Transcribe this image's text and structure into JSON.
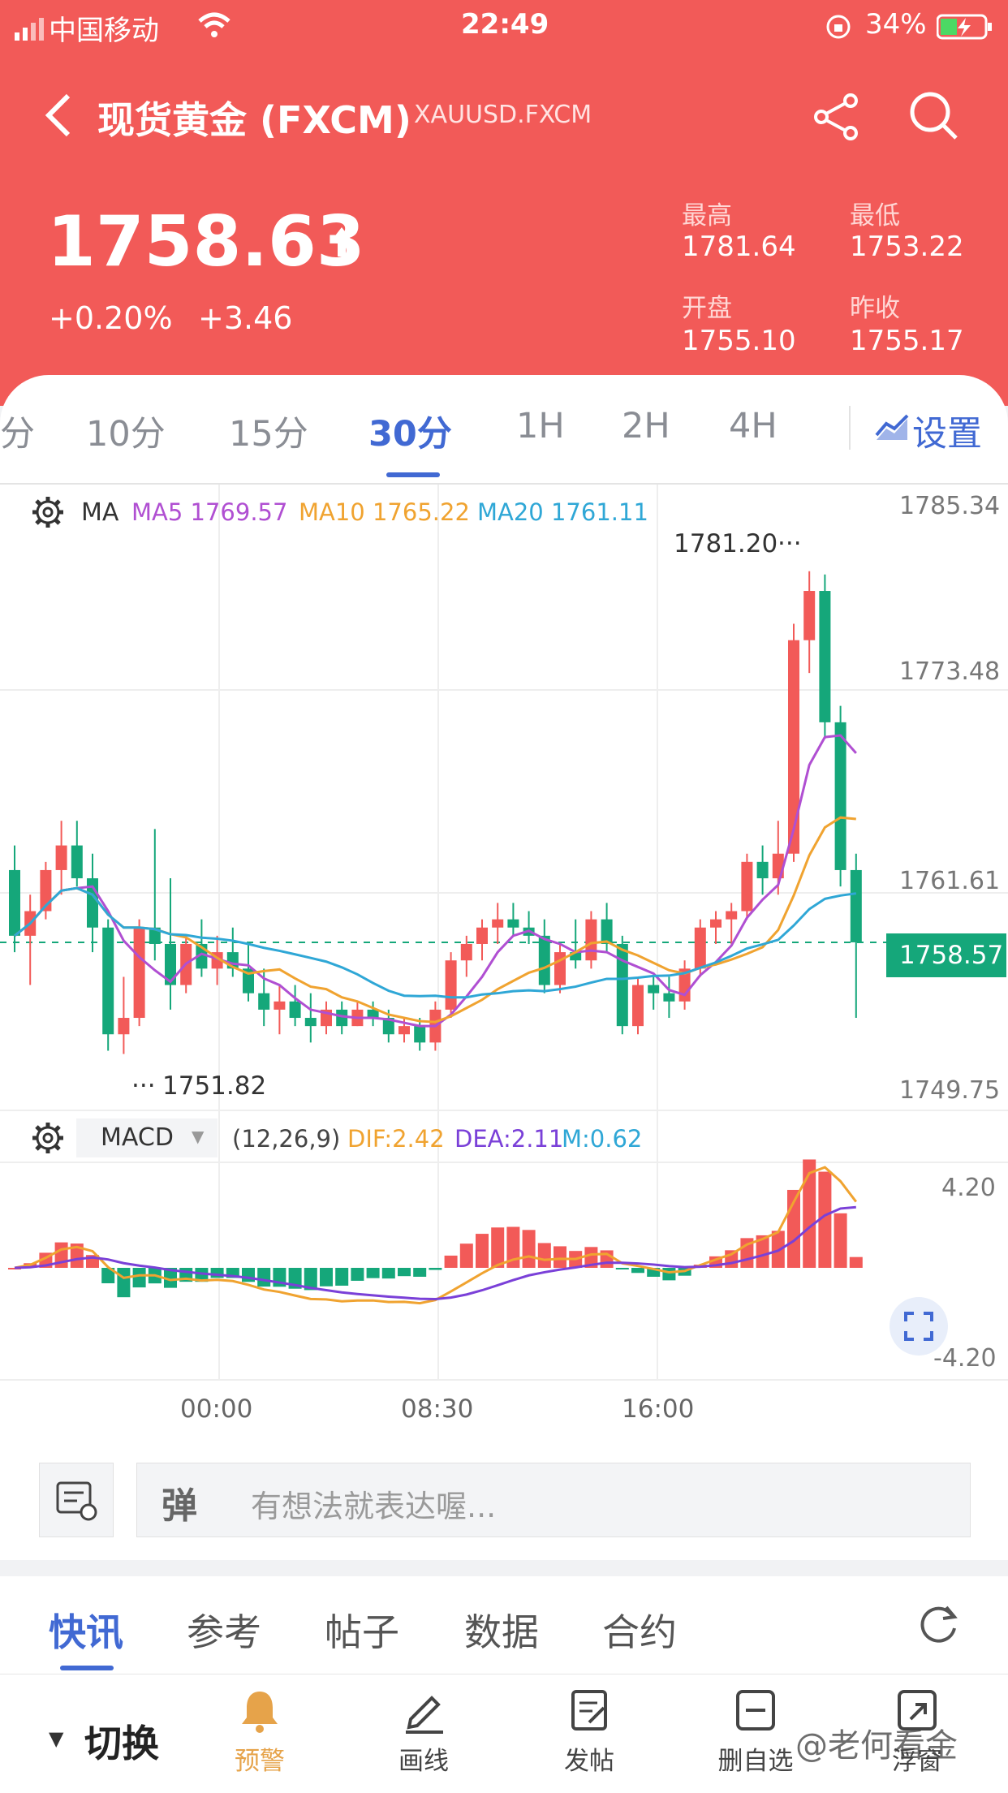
{
  "status_bar": {
    "carrier": "中国移动",
    "time": "22:49",
    "battery": "34%"
  },
  "nav": {
    "title": "现货黄金 (FXCM)",
    "symbol": "XAUUSD.FXCM"
  },
  "quote": {
    "price": "1758.63",
    "change_pct": "+0.20%",
    "change_abs": "+3.46",
    "high_label": "最高",
    "high": "1781.64",
    "low_label": "最低",
    "low": "1753.22",
    "open_label": "开盘",
    "open": "1755.10",
    "prev_label": "昨收",
    "prev": "1755.17",
    "color_up": "#f25a58"
  },
  "period_tabs": [
    {
      "label": "分"
    },
    {
      "label": "10分"
    },
    {
      "label": "15分"
    },
    {
      "label": "30分",
      "active": true
    },
    {
      "label": "1H"
    },
    {
      "label": "2H"
    },
    {
      "label": "4H"
    }
  ],
  "settings_label": "设置",
  "ma": {
    "label": "MA",
    "ma5": "MA5 1769.57",
    "ma10": "MA10 1765.22",
    "ma20": "MA20 1761.11"
  },
  "macd": {
    "label": "MACD",
    "params": "(12,26,9)",
    "dif": "DIF:2.42",
    "dea": "DEA:2.11",
    "m": "M:0.62"
  },
  "price_axis": {
    "top": "1785.34",
    "upper": "1773.48",
    "mid": "1761.61",
    "bottom": "1749.75",
    "current": "1758.57"
  },
  "macd_axis": {
    "top": "4.20",
    "bottom": "-4.20"
  },
  "annotations": {
    "high_mark": "1781.20",
    "low_mark": "1751.82"
  },
  "time_axis": [
    "00:00",
    "08:30",
    "16:00"
  ],
  "comment": {
    "placeholder": "有想法就表达喔..."
  },
  "news_tabs": [
    "快讯",
    "参考",
    "帖子",
    "数据",
    "合约"
  ],
  "toolbar": {
    "switch": "切换",
    "alert": "预警",
    "draw": "画线",
    "post": "发帖",
    "remove": "删自选",
    "float": "浮窗"
  },
  "watermark": "@老何看金",
  "chart_data": {
    "type": "candlestick",
    "price_range": [
      1749.75,
      1785.34
    ],
    "candles": [
      [
        1763.0,
        1764.5,
        1758.0,
        1759.0
      ],
      [
        1759.0,
        1761.5,
        1756.0,
        1760.5
      ],
      [
        1760.5,
        1763.5,
        1760.0,
        1763.0
      ],
      [
        1763.0,
        1766.0,
        1761.5,
        1764.5
      ],
      [
        1764.5,
        1766.0,
        1762.0,
        1762.5
      ],
      [
        1762.5,
        1764.0,
        1758.0,
        1759.5
      ],
      [
        1759.5,
        1760.0,
        1752.0,
        1753.0
      ],
      [
        1753.0,
        1756.5,
        1751.8,
        1754.0
      ],
      [
        1754.0,
        1760.0,
        1753.5,
        1759.5
      ],
      [
        1759.5,
        1765.5,
        1757.5,
        1758.5
      ],
      [
        1758.5,
        1762.5,
        1754.5,
        1756.0
      ],
      [
        1756.0,
        1759.0,
        1755.5,
        1758.5
      ],
      [
        1758.5,
        1760.0,
        1756.5,
        1757.0
      ],
      [
        1757.0,
        1759.0,
        1756.0,
        1758.0
      ],
      [
        1758.0,
        1759.5,
        1756.5,
        1757.0
      ],
      [
        1757.0,
        1758.5,
        1755.0,
        1755.5
      ],
      [
        1755.5,
        1757.0,
        1753.5,
        1754.5
      ],
      [
        1754.5,
        1756.0,
        1753.0,
        1755.0
      ],
      [
        1755.0,
        1756.0,
        1753.5,
        1754.0
      ],
      [
        1754.0,
        1755.5,
        1752.5,
        1753.5
      ],
      [
        1753.5,
        1755.0,
        1753.0,
        1754.5
      ],
      [
        1754.5,
        1755.0,
        1753.0,
        1753.5
      ],
      [
        1753.5,
        1755.0,
        1753.5,
        1754.5
      ],
      [
        1754.5,
        1755.0,
        1753.5,
        1754.0
      ],
      [
        1754.0,
        1754.5,
        1752.5,
        1753.0
      ],
      [
        1753.0,
        1754.0,
        1752.5,
        1753.5
      ],
      [
        1753.5,
        1754.0,
        1752.0,
        1752.5
      ],
      [
        1752.5,
        1755.0,
        1752.0,
        1754.5
      ],
      [
        1754.5,
        1758.0,
        1754.0,
        1757.5
      ],
      [
        1757.5,
        1759.0,
        1756.5,
        1758.5
      ],
      [
        1758.5,
        1760.0,
        1757.5,
        1759.5
      ],
      [
        1759.5,
        1761.0,
        1758.5,
        1760.0
      ],
      [
        1760.0,
        1761.0,
        1759.0,
        1759.5
      ],
      [
        1759.5,
        1760.5,
        1758.5,
        1759.0
      ],
      [
        1759.0,
        1760.0,
        1755.5,
        1756.0
      ],
      [
        1756.0,
        1758.5,
        1755.5,
        1758.0
      ],
      [
        1758.0,
        1760.0,
        1757.0,
        1757.5
      ],
      [
        1757.5,
        1760.5,
        1757.0,
        1760.0
      ],
      [
        1760.0,
        1761.0,
        1758.0,
        1758.5
      ],
      [
        1758.5,
        1759.0,
        1753.0,
        1753.5
      ],
      [
        1753.5,
        1756.5,
        1753.0,
        1756.0
      ],
      [
        1756.0,
        1756.5,
        1754.5,
        1755.5
      ],
      [
        1755.5,
        1756.5,
        1754.0,
        1755.0
      ],
      [
        1755.0,
        1757.5,
        1754.5,
        1757.0
      ],
      [
        1757.0,
        1760.0,
        1756.5,
        1759.5
      ],
      [
        1759.5,
        1760.5,
        1758.5,
        1760.0
      ],
      [
        1760.0,
        1761.0,
        1758.5,
        1760.5
      ],
      [
        1760.5,
        1764.0,
        1760.0,
        1763.5
      ],
      [
        1763.5,
        1764.5,
        1761.5,
        1762.5
      ],
      [
        1762.5,
        1766.0,
        1761.5,
        1764.0
      ],
      [
        1764.0,
        1778.0,
        1763.5,
        1777.0
      ],
      [
        1777.0,
        1781.2,
        1775.0,
        1780.0
      ],
      [
        1780.0,
        1781.0,
        1771.0,
        1772.0
      ],
      [
        1772.0,
        1773.0,
        1762.0,
        1763.0
      ],
      [
        1763.0,
        1764.0,
        1754.0,
        1758.6
      ]
    ]
  }
}
